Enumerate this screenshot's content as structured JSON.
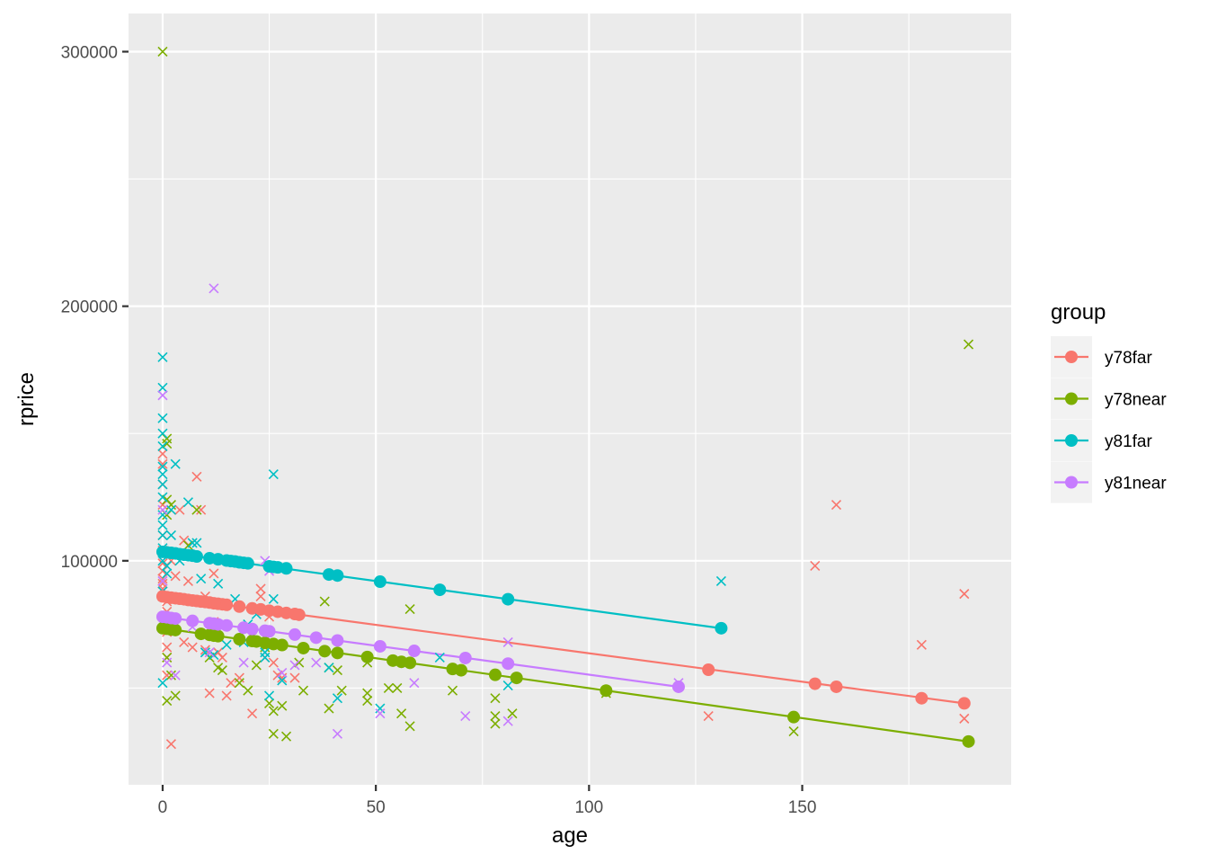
{
  "chart_data": {
    "type": "scatter",
    "title": "",
    "xlabel": "age",
    "ylabel": "rprice",
    "xlim": [
      -8,
      199
    ],
    "ylim": [
      12000,
      315000
    ],
    "x_ticks": [
      0,
      50,
      100,
      150
    ],
    "x_tick_labels": [
      "0",
      "50",
      "100",
      "150"
    ],
    "y_ticks": [
      100000,
      200000,
      300000
    ],
    "y_tick_labels": [
      "100000",
      "200000",
      "300000"
    ],
    "grid": true,
    "legend": {
      "title": "group",
      "position": "right"
    },
    "series": [
      {
        "name": "y78far",
        "color": "#F8766D",
        "fit_line": [
          [
            0,
            86000
          ],
          [
            188,
            44000
          ]
        ],
        "fitted_points": [
          [
            0,
            86000
          ],
          [
            1,
            85700
          ],
          [
            2,
            85500
          ],
          [
            3,
            85300
          ],
          [
            4,
            85100
          ],
          [
            5,
            84900
          ],
          [
            6,
            84600
          ],
          [
            7,
            84400
          ],
          [
            8,
            84200
          ],
          [
            9,
            84000
          ],
          [
            10,
            83800
          ],
          [
            11,
            83600
          ],
          [
            12,
            83300
          ],
          [
            13,
            83100
          ],
          [
            14,
            82900
          ],
          [
            15,
            82700
          ],
          [
            18,
            82000
          ],
          [
            21,
            81300
          ],
          [
            23,
            80900
          ],
          [
            25,
            80400
          ],
          [
            27,
            80000
          ],
          [
            29,
            79500
          ],
          [
            31,
            79100
          ],
          [
            32,
            78800
          ],
          [
            128,
            57200
          ],
          [
            153,
            51700
          ],
          [
            158,
            50500
          ],
          [
            178,
            46000
          ],
          [
            188,
            44000
          ]
        ],
        "observed": [
          [
            0,
            142000
          ],
          [
            0,
            138000
          ],
          [
            0,
            130000
          ],
          [
            0,
            122000
          ],
          [
            0,
            110000
          ],
          [
            0,
            104000
          ],
          [
            0,
            99000
          ],
          [
            0,
            96000
          ],
          [
            0,
            93000
          ],
          [
            0,
            91000
          ],
          [
            0,
            89000
          ],
          [
            0,
            86000
          ],
          [
            1,
            84000
          ],
          [
            1,
            80000
          ],
          [
            1,
            76000
          ],
          [
            1,
            72000
          ],
          [
            1,
            66000
          ],
          [
            1,
            62000
          ],
          [
            1,
            55000
          ],
          [
            2,
            28000
          ],
          [
            2,
            100000
          ],
          [
            3,
            94000
          ],
          [
            4,
            120000
          ],
          [
            5,
            108000
          ],
          [
            5,
            68000
          ],
          [
            6,
            92000
          ],
          [
            7,
            66000
          ],
          [
            8,
            133000
          ],
          [
            9,
            120000
          ],
          [
            10,
            65000
          ],
          [
            10,
            86000
          ],
          [
            11,
            48000
          ],
          [
            12,
            76000
          ],
          [
            12,
            95000
          ],
          [
            13,
            64000
          ],
          [
            14,
            62000
          ],
          [
            15,
            47000
          ],
          [
            16,
            52000
          ],
          [
            18,
            54000
          ],
          [
            21,
            40000
          ],
          [
            23,
            89000
          ],
          [
            23,
            86000
          ],
          [
            24,
            62000
          ],
          [
            25,
            78000
          ],
          [
            26,
            60000
          ],
          [
            27,
            55000
          ],
          [
            28,
            54000
          ],
          [
            31,
            54000
          ],
          [
            128,
            39000
          ],
          [
            153,
            98000
          ],
          [
            158,
            122000
          ],
          [
            178,
            67000
          ],
          [
            188,
            87000
          ],
          [
            188,
            38000
          ]
        ]
      },
      {
        "name": "y78near",
        "color": "#7CAE00",
        "fit_line": [
          [
            0,
            73500
          ],
          [
            189,
            29000
          ]
        ],
        "fitted_points": [
          [
            0,
            73500
          ],
          [
            1,
            73300
          ],
          [
            2,
            73000
          ],
          [
            3,
            72800
          ],
          [
            9,
            71300
          ],
          [
            11,
            70900
          ],
          [
            12,
            70600
          ],
          [
            13,
            70400
          ],
          [
            18,
            69200
          ],
          [
            21,
            68500
          ],
          [
            22,
            68300
          ],
          [
            24,
            67800
          ],
          [
            26,
            67300
          ],
          [
            28,
            66900
          ],
          [
            33,
            65700
          ],
          [
            38,
            64500
          ],
          [
            41,
            63800
          ],
          [
            48,
            62200
          ],
          [
            54,
            60800
          ],
          [
            56,
            60300
          ],
          [
            58,
            59900
          ],
          [
            68,
            57500
          ],
          [
            70,
            57000
          ],
          [
            78,
            55200
          ],
          [
            83,
            54000
          ],
          [
            104,
            49000
          ],
          [
            148,
            38600
          ],
          [
            189,
            29000
          ]
        ],
        "observed": [
          [
            0,
            300000
          ],
          [
            1,
            148000
          ],
          [
            1,
            146000
          ],
          [
            1,
            124000
          ],
          [
            1,
            118000
          ],
          [
            1,
            62000
          ],
          [
            1,
            45000
          ],
          [
            2,
            122000
          ],
          [
            2,
            55000
          ],
          [
            3,
            47000
          ],
          [
            6,
            106000
          ],
          [
            8,
            120000
          ],
          [
            11,
            62000
          ],
          [
            13,
            58000
          ],
          [
            14,
            57000
          ],
          [
            18,
            52000
          ],
          [
            20,
            49000
          ],
          [
            22,
            59000
          ],
          [
            24,
            66000
          ],
          [
            25,
            44000
          ],
          [
            26,
            41000
          ],
          [
            26,
            32000
          ],
          [
            28,
            43000
          ],
          [
            29,
            31000
          ],
          [
            32,
            60000
          ],
          [
            33,
            49000
          ],
          [
            38,
            84000
          ],
          [
            39,
            58000
          ],
          [
            39,
            42000
          ],
          [
            41,
            57000
          ],
          [
            42,
            49000
          ],
          [
            48,
            48000
          ],
          [
            48,
            45000
          ],
          [
            48,
            60000
          ],
          [
            53,
            50000
          ],
          [
            55,
            50000
          ],
          [
            56,
            40000
          ],
          [
            58,
            35000
          ],
          [
            58,
            81000
          ],
          [
            68,
            49000
          ],
          [
            78,
            46000
          ],
          [
            78,
            39000
          ],
          [
            78,
            36000
          ],
          [
            82,
            40000
          ],
          [
            104,
            48000
          ],
          [
            148,
            33000
          ],
          [
            189,
            185000
          ]
        ]
      },
      {
        "name": "y81far",
        "color": "#00BFC4",
        "fit_line": [
          [
            0,
            103500
          ],
          [
            131,
            73500
          ]
        ],
        "fitted_points": [
          [
            0,
            103500
          ],
          [
            1,
            103300
          ],
          [
            2,
            103100
          ],
          [
            3,
            102900
          ],
          [
            4,
            102600
          ],
          [
            5,
            102400
          ],
          [
            6,
            102200
          ],
          [
            7,
            102000
          ],
          [
            8,
            101700
          ],
          [
            11,
            101000
          ],
          [
            13,
            100600
          ],
          [
            15,
            100100
          ],
          [
            16,
            99900
          ],
          [
            17,
            99700
          ],
          [
            18,
            99400
          ],
          [
            19,
            99200
          ],
          [
            20,
            99000
          ],
          [
            25,
            97800
          ],
          [
            26,
            97600
          ],
          [
            27,
            97400
          ],
          [
            29,
            97000
          ],
          [
            39,
            94600
          ],
          [
            41,
            94200
          ],
          [
            51,
            91800
          ],
          [
            65,
            88600
          ],
          [
            81,
            84900
          ],
          [
            131,
            73500
          ]
        ],
        "observed": [
          [
            0,
            180000
          ],
          [
            0,
            168000
          ],
          [
            0,
            156000
          ],
          [
            0,
            150000
          ],
          [
            0,
            145000
          ],
          [
            0,
            137000
          ],
          [
            0,
            134000
          ],
          [
            0,
            130000
          ],
          [
            0,
            125000
          ],
          [
            0,
            118000
          ],
          [
            0,
            114000
          ],
          [
            0,
            110000
          ],
          [
            0,
            105000
          ],
          [
            0,
            100000
          ],
          [
            0,
            88000
          ],
          [
            1,
            98000
          ],
          [
            1,
            95000
          ],
          [
            2,
            120000
          ],
          [
            2,
            110000
          ],
          [
            3,
            138000
          ],
          [
            4,
            100000
          ],
          [
            6,
            123000
          ],
          [
            7,
            107000
          ],
          [
            8,
            107000
          ],
          [
            9,
            93000
          ],
          [
            10,
            64000
          ],
          [
            12,
            63000
          ],
          [
            13,
            91000
          ],
          [
            15,
            67000
          ],
          [
            17,
            85000
          ],
          [
            19,
            68000
          ],
          [
            20,
            75000
          ],
          [
            22,
            79000
          ],
          [
            24,
            64000
          ],
          [
            24,
            62000
          ],
          [
            25,
            47000
          ],
          [
            26,
            134000
          ],
          [
            26,
            85000
          ],
          [
            28,
            53000
          ],
          [
            39,
            58000
          ],
          [
            41,
            46000
          ],
          [
            51,
            42000
          ],
          [
            65,
            62000
          ],
          [
            81,
            51000
          ],
          [
            131,
            92000
          ],
          [
            0,
            52000
          ]
        ]
      },
      {
        "name": "y81near",
        "color": "#C77CFF",
        "fit_line": [
          [
            0,
            78000
          ],
          [
            121,
            50500
          ]
        ],
        "fitted_points": [
          [
            0,
            78000
          ],
          [
            1,
            77800
          ],
          [
            2,
            77500
          ],
          [
            3,
            77300
          ],
          [
            7,
            76400
          ],
          [
            11,
            75500
          ],
          [
            12,
            75300
          ],
          [
            13,
            75000
          ],
          [
            15,
            74600
          ],
          [
            19,
            73700
          ],
          [
            21,
            73200
          ],
          [
            24,
            72500
          ],
          [
            25,
            72300
          ],
          [
            31,
            71000
          ],
          [
            36,
            69800
          ],
          [
            41,
            68700
          ],
          [
            51,
            66400
          ],
          [
            59,
            64600
          ],
          [
            71,
            61800
          ],
          [
            81,
            59600
          ],
          [
            121,
            50500
          ]
        ],
        "observed": [
          [
            0,
            165000
          ],
          [
            0,
            120000
          ],
          [
            0,
            92000
          ],
          [
            0,
            75000
          ],
          [
            1,
            60000
          ],
          [
            3,
            55000
          ],
          [
            7,
            74000
          ],
          [
            11,
            64000
          ],
          [
            12,
            207000
          ],
          [
            13,
            75000
          ],
          [
            19,
            60000
          ],
          [
            21,
            70000
          ],
          [
            24,
            100000
          ],
          [
            25,
            96000
          ],
          [
            28,
            56000
          ],
          [
            31,
            59000
          ],
          [
            36,
            60000
          ],
          [
            41,
            32000
          ],
          [
            51,
            40000
          ],
          [
            59,
            52000
          ],
          [
            71,
            39000
          ],
          [
            81,
            68000
          ],
          [
            81,
            37000
          ],
          [
            121,
            52000
          ]
        ]
      }
    ]
  }
}
